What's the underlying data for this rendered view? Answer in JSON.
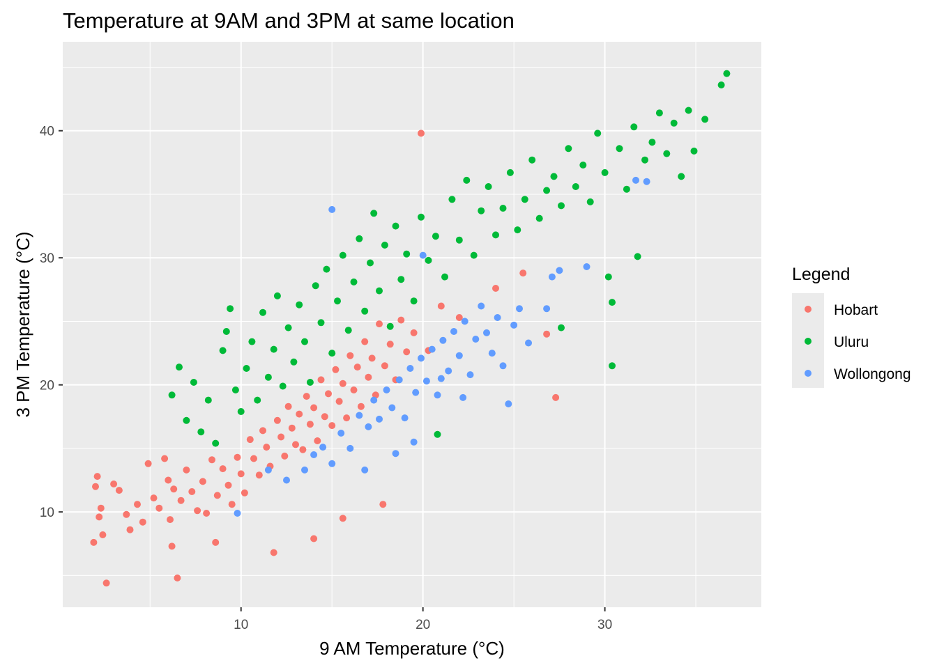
{
  "chart_data": {
    "type": "scatter",
    "title": "Temperature at 9AM and 3PM at same location",
    "xlabel": "9 AM Temperature (°C)",
    "ylabel": "3 PM Temperature (°C)",
    "xlim": [
      0.2,
      38.6
    ],
    "ylim": [
      2.5,
      47.0
    ],
    "x_ticks": [
      10,
      20,
      30
    ],
    "y_ticks": [
      10,
      20,
      30,
      40
    ],
    "x_tick_labels": [
      "10",
      "20",
      "30"
    ],
    "y_tick_labels": [
      "10",
      "20",
      "30",
      "40"
    ],
    "grid": true,
    "legend": {
      "title": "Legend",
      "position": "right"
    },
    "series": [
      {
        "name": "Hobart",
        "color": "#F8766D",
        "points": [
          [
            2.0,
            12.0
          ],
          [
            2.1,
            12.8
          ],
          [
            2.2,
            9.6
          ],
          [
            2.4,
            8.2
          ],
          [
            2.6,
            4.4
          ],
          [
            3.0,
            12.2
          ],
          [
            3.3,
            11.7
          ],
          [
            3.7,
            9.8
          ],
          [
            3.9,
            8.6
          ],
          [
            4.3,
            10.6
          ],
          [
            4.6,
            9.2
          ],
          [
            4.9,
            13.8
          ],
          [
            5.2,
            11.1
          ],
          [
            5.5,
            10.3
          ],
          [
            5.8,
            14.2
          ],
          [
            6.0,
            12.5
          ],
          [
            6.1,
            9.4
          ],
          [
            6.3,
            11.8
          ],
          [
            6.5,
            4.8
          ],
          [
            6.7,
            10.9
          ],
          [
            7.0,
            13.3
          ],
          [
            7.3,
            11.6
          ],
          [
            7.6,
            10.1
          ],
          [
            7.9,
            12.4
          ],
          [
            8.1,
            9.9
          ],
          [
            8.4,
            14.1
          ],
          [
            8.7,
            11.3
          ],
          [
            9.0,
            13.4
          ],
          [
            9.3,
            12.1
          ],
          [
            9.5,
            10.6
          ],
          [
            9.8,
            14.3
          ],
          [
            10.0,
            13.0
          ],
          [
            10.2,
            11.5
          ],
          [
            10.5,
            15.7
          ],
          [
            10.7,
            14.2
          ],
          [
            11.0,
            12.9
          ],
          [
            11.2,
            16.4
          ],
          [
            11.4,
            15.1
          ],
          [
            11.6,
            13.6
          ],
          [
            11.8,
            6.8
          ],
          [
            12.0,
            17.2
          ],
          [
            12.2,
            15.9
          ],
          [
            12.4,
            14.4
          ],
          [
            12.6,
            18.3
          ],
          [
            12.8,
            16.6
          ],
          [
            13.0,
            15.3
          ],
          [
            13.2,
            17.7
          ],
          [
            13.4,
            14.9
          ],
          [
            13.6,
            19.1
          ],
          [
            13.8,
            16.9
          ],
          [
            14.0,
            18.2
          ],
          [
            14.2,
            15.6
          ],
          [
            14.4,
            20.4
          ],
          [
            14.6,
            17.5
          ],
          [
            14.8,
            19.3
          ],
          [
            15.0,
            16.8
          ],
          [
            15.2,
            21.2
          ],
          [
            15.4,
            18.7
          ],
          [
            15.6,
            20.1
          ],
          [
            15.8,
            17.4
          ],
          [
            16.0,
            22.3
          ],
          [
            16.2,
            19.6
          ],
          [
            16.4,
            21.4
          ],
          [
            16.6,
            18.3
          ],
          [
            16.8,
            23.4
          ],
          [
            17.0,
            20.6
          ],
          [
            17.2,
            22.1
          ],
          [
            17.4,
            19.2
          ],
          [
            17.6,
            24.8
          ],
          [
            17.9,
            21.5
          ],
          [
            18.2,
            23.2
          ],
          [
            18.5,
            20.4
          ],
          [
            18.8,
            25.1
          ],
          [
            19.1,
            22.6
          ],
          [
            19.5,
            24.1
          ],
          [
            19.9,
            39.8
          ],
          [
            20.3,
            22.7
          ],
          [
            21.0,
            26.2
          ],
          [
            22.0,
            25.3
          ],
          [
            24.0,
            27.6
          ],
          [
            25.5,
            28.8
          ],
          [
            26.8,
            24.0
          ],
          [
            27.3,
            19.0
          ],
          [
            17.8,
            10.6
          ],
          [
            15.6,
            9.5
          ],
          [
            14.0,
            7.9
          ],
          [
            8.6,
            7.6
          ],
          [
            6.2,
            7.3
          ],
          [
            1.9,
            7.6
          ],
          [
            2.3,
            10.3
          ]
        ]
      },
      {
        "name": "Uluru",
        "color": "#00BA38",
        "points": [
          [
            6.2,
            19.2
          ],
          [
            6.6,
            21.4
          ],
          [
            7.0,
            17.2
          ],
          [
            7.4,
            20.2
          ],
          [
            7.8,
            16.3
          ],
          [
            8.2,
            18.8
          ],
          [
            8.6,
            15.4
          ],
          [
            9.0,
            22.7
          ],
          [
            9.2,
            24.2
          ],
          [
            9.4,
            26.0
          ],
          [
            9.7,
            19.6
          ],
          [
            10.0,
            17.9
          ],
          [
            10.3,
            21.3
          ],
          [
            10.6,
            23.4
          ],
          [
            10.9,
            18.8
          ],
          [
            11.2,
            25.7
          ],
          [
            11.5,
            20.6
          ],
          [
            11.8,
            22.8
          ],
          [
            12.0,
            27.0
          ],
          [
            12.3,
            19.9
          ],
          [
            12.6,
            24.5
          ],
          [
            12.9,
            21.8
          ],
          [
            13.2,
            26.3
          ],
          [
            13.5,
            23.4
          ],
          [
            13.8,
            20.2
          ],
          [
            14.1,
            27.8
          ],
          [
            14.4,
            24.9
          ],
          [
            14.7,
            29.1
          ],
          [
            15.0,
            22.5
          ],
          [
            15.3,
            26.6
          ],
          [
            15.6,
            30.2
          ],
          [
            15.9,
            24.3
          ],
          [
            16.2,
            28.1
          ],
          [
            16.5,
            31.5
          ],
          [
            16.8,
            25.8
          ],
          [
            17.1,
            29.6
          ],
          [
            17.3,
            33.5
          ],
          [
            17.6,
            27.4
          ],
          [
            17.9,
            31.0
          ],
          [
            18.2,
            24.6
          ],
          [
            18.5,
            32.5
          ],
          [
            18.8,
            28.3
          ],
          [
            19.1,
            30.3
          ],
          [
            19.5,
            26.6
          ],
          [
            19.9,
            33.2
          ],
          [
            20.3,
            29.8
          ],
          [
            20.7,
            31.7
          ],
          [
            20.8,
            16.1
          ],
          [
            21.2,
            28.5
          ],
          [
            21.6,
            34.6
          ],
          [
            22.0,
            31.4
          ],
          [
            22.4,
            36.1
          ],
          [
            22.8,
            30.2
          ],
          [
            23.2,
            33.7
          ],
          [
            23.6,
            35.6
          ],
          [
            24.0,
            31.8
          ],
          [
            24.4,
            33.9
          ],
          [
            24.8,
            36.7
          ],
          [
            25.2,
            32.2
          ],
          [
            25.6,
            34.6
          ],
          [
            26.0,
            37.7
          ],
          [
            26.4,
            33.1
          ],
          [
            26.8,
            35.3
          ],
          [
            27.2,
            36.4
          ],
          [
            27.6,
            34.1
          ],
          [
            28.0,
            38.6
          ],
          [
            28.4,
            35.6
          ],
          [
            28.8,
            37.3
          ],
          [
            29.2,
            34.4
          ],
          [
            29.6,
            39.8
          ],
          [
            30.0,
            36.7
          ],
          [
            30.2,
            28.5
          ],
          [
            30.4,
            21.5
          ],
          [
            30.4,
            26.5
          ],
          [
            30.8,
            38.6
          ],
          [
            31.2,
            35.4
          ],
          [
            31.6,
            40.3
          ],
          [
            31.8,
            30.1
          ],
          [
            32.2,
            37.7
          ],
          [
            32.6,
            39.1
          ],
          [
            33.0,
            41.4
          ],
          [
            33.4,
            38.2
          ],
          [
            33.8,
            40.6
          ],
          [
            34.2,
            36.4
          ],
          [
            34.6,
            41.6
          ],
          [
            34.9,
            38.4
          ],
          [
            35.5,
            40.9
          ],
          [
            36.4,
            43.6
          ],
          [
            36.7,
            44.5
          ],
          [
            27.6,
            24.5
          ]
        ]
      },
      {
        "name": "Wollongong",
        "color": "#619CFF",
        "points": [
          [
            9.8,
            9.9
          ],
          [
            11.5,
            13.3
          ],
          [
            12.5,
            12.5
          ],
          [
            13.5,
            13.3
          ],
          [
            14.0,
            14.5
          ],
          [
            14.5,
            15.1
          ],
          [
            15.0,
            13.8
          ],
          [
            15.5,
            16.2
          ],
          [
            16.0,
            15.0
          ],
          [
            16.5,
            17.6
          ],
          [
            16.8,
            13.3
          ],
          [
            17.0,
            16.7
          ],
          [
            17.3,
            18.8
          ],
          [
            17.6,
            17.3
          ],
          [
            18.0,
            19.6
          ],
          [
            18.3,
            18.2
          ],
          [
            18.5,
            14.6
          ],
          [
            18.7,
            20.4
          ],
          [
            19.0,
            17.4
          ],
          [
            19.3,
            21.3
          ],
          [
            19.6,
            19.4
          ],
          [
            19.9,
            22.1
          ],
          [
            20.0,
            30.2
          ],
          [
            20.2,
            20.3
          ],
          [
            20.5,
            22.8
          ],
          [
            20.8,
            19.2
          ],
          [
            21.1,
            23.5
          ],
          [
            21.4,
            21.1
          ],
          [
            21.7,
            24.2
          ],
          [
            22.0,
            22.3
          ],
          [
            22.3,
            25.0
          ],
          [
            22.6,
            20.8
          ],
          [
            22.9,
            23.6
          ],
          [
            23.2,
            26.2
          ],
          [
            23.5,
            24.1
          ],
          [
            23.8,
            22.5
          ],
          [
            24.1,
            25.3
          ],
          [
            24.4,
            21.5
          ],
          [
            24.7,
            18.5
          ],
          [
            25.0,
            24.7
          ],
          [
            25.3,
            26.0
          ],
          [
            25.8,
            23.3
          ],
          [
            26.8,
            26.0
          ],
          [
            27.1,
            28.5
          ],
          [
            27.5,
            29.0
          ],
          [
            29.0,
            29.3
          ],
          [
            31.7,
            36.1
          ],
          [
            32.3,
            36.0
          ],
          [
            15.0,
            33.8
          ],
          [
            21.0,
            20.5
          ],
          [
            22.2,
            19.0
          ],
          [
            19.5,
            15.5
          ]
        ]
      }
    ]
  }
}
